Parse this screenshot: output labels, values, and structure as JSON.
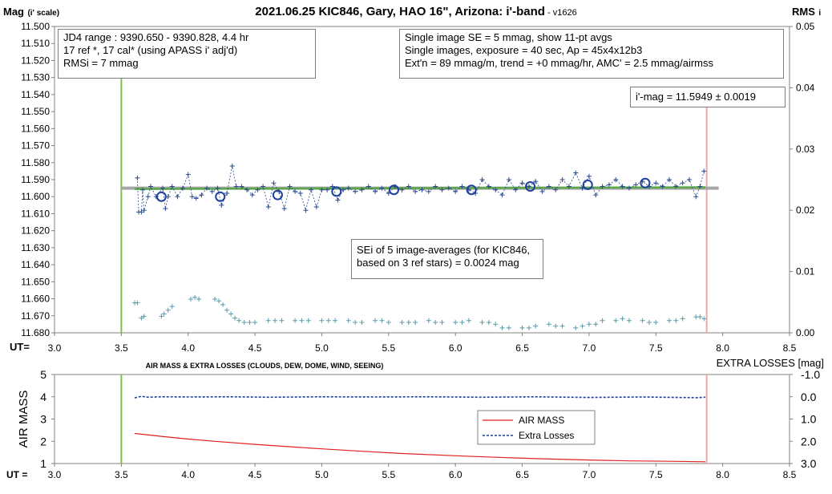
{
  "header": {
    "title": "2021.06.25 KIC846, Gary, HAO 16\", Arizona: i'-band",
    "version": " - v1626",
    "left_axis_label": "Mag",
    "left_axis_sub": "(i' scale)",
    "right_axis_label": "RMS",
    "right_axis_sub": "i"
  },
  "colors": {
    "data": "#2b4a8c",
    "avg_circle": "#1f3f9e",
    "fit_line": "#5aa84a",
    "mean_line": "#a6a6a6",
    "rms": "#5b9aa8",
    "start_line": "#7cc24a",
    "end_line": "#f2a6a6",
    "airmass": "#e02020",
    "extra_losses": "#1f3f9e"
  },
  "info_boxes": {
    "left": [
      "JD4 range : 9390.650 - 9390.828, 4.4  hr",
      "17 ref *, 17 cal* (using APASS i' adj'd)",
      "RMSi = 7 mmag"
    ],
    "right": [
      "Single image SE = 5 mmag, show 11-pt avgs",
      "Single images, exposure = 40 sec, Ap = 45x4x12b3",
      "Ext'n = 89 mmag/m, trend = +0 mmag/hr, AMC' = 2.5 mmag/airmss"
    ],
    "imag": "i'-mag = 11.5949 ± 0.0019",
    "sei": [
      "SEi of 5 image-averages (for KIC846,",
      "based on 3 ref stars) = 0.0024 mag"
    ]
  },
  "chart_data": [
    {
      "type": "scatter",
      "title": "2021.06.25 KIC846, Gary, HAO 16\", Arizona: i'-band",
      "xlabel": "UT=",
      "ylabel": "Mag (i' scale)",
      "y2label": "RMS i",
      "xlim": [
        3.0,
        8.5
      ],
      "ylim": [
        11.68,
        11.5
      ],
      "y2lim": [
        0.0,
        0.05
      ],
      "grid": false,
      "x_ticks": [
        "3.0",
        "3.5",
        "4.0",
        "4.5",
        "5.0",
        "5.5",
        "6.0",
        "6.5",
        "7.0",
        "7.5",
        "8.0",
        "8.5"
      ],
      "y_ticks": [
        "11.500",
        "11.510",
        "11.520",
        "11.530",
        "11.540",
        "11.550",
        "11.560",
        "11.570",
        "11.580",
        "11.590",
        "11.600",
        "11.610",
        "11.620",
        "11.630",
        "11.640",
        "11.650",
        "11.660",
        "11.670",
        "11.680"
      ],
      "y2_ticks": [
        "0.05",
        "0.04",
        "0.03",
        "0.02",
        "0.01",
        "0.00"
      ],
      "vlines": {
        "start": 3.5,
        "end": 7.88
      },
      "mean_mag": 11.595,
      "fit_line": {
        "x": [
          3.6,
          7.87
        ],
        "y": [
          11.5955,
          11.5945
        ]
      },
      "averages": {
        "x": [
          3.8,
          4.24,
          4.67,
          5.11,
          5.54,
          6.12,
          6.56,
          6.99,
          7.42
        ],
        "y": [
          11.6,
          11.6,
          11.599,
          11.597,
          11.596,
          11.596,
          11.594,
          11.593,
          11.592
        ]
      },
      "singles": {
        "x": [
          3.62,
          3.63,
          3.65,
          3.66,
          3.67,
          3.7,
          3.72,
          3.76,
          3.81,
          3.83,
          3.85,
          3.88,
          3.92,
          3.96,
          4.0,
          4.03,
          4.06,
          4.1,
          4.14,
          4.18,
          4.22,
          4.25,
          4.29,
          4.33,
          4.36,
          4.4,
          4.44,
          4.48,
          4.52,
          4.56,
          4.6,
          4.64,
          4.68,
          4.72,
          4.76,
          4.8,
          4.84,
          4.88,
          4.92,
          4.96,
          5.0,
          5.04,
          5.08,
          5.12,
          5.16,
          5.2,
          5.25,
          5.3,
          5.35,
          5.4,
          5.45,
          5.5,
          5.55,
          5.6,
          5.65,
          5.7,
          5.75,
          5.8,
          5.85,
          5.9,
          5.95,
          6.0,
          6.05,
          6.1,
          6.15,
          6.2,
          6.25,
          6.3,
          6.35,
          6.4,
          6.45,
          6.5,
          6.55,
          6.6,
          6.65,
          6.7,
          6.75,
          6.8,
          6.85,
          6.9,
          6.95,
          7.0,
          7.05,
          7.1,
          7.15,
          7.2,
          7.25,
          7.3,
          7.35,
          7.4,
          7.45,
          7.5,
          7.55,
          7.6,
          7.65,
          7.7,
          7.75,
          7.8,
          7.83,
          7.86
        ],
        "y": [
          11.589,
          11.609,
          11.609,
          11.596,
          11.608,
          11.6,
          11.594,
          11.6,
          11.595,
          11.607,
          11.6,
          11.594,
          11.6,
          11.595,
          11.587,
          11.6,
          11.601,
          11.599,
          11.595,
          11.597,
          11.595,
          11.605,
          11.598,
          11.582,
          11.594,
          11.594,
          11.596,
          11.599,
          11.596,
          11.594,
          11.606,
          11.592,
          11.597,
          11.607,
          11.594,
          11.597,
          11.598,
          11.608,
          11.596,
          11.606,
          11.596,
          11.596,
          11.594,
          11.602,
          11.596,
          11.595,
          11.597,
          11.596,
          11.594,
          11.597,
          11.595,
          11.598,
          11.594,
          11.596,
          11.594,
          11.597,
          11.596,
          11.597,
          11.594,
          11.596,
          11.595,
          11.597,
          11.594,
          11.596,
          11.598,
          11.59,
          11.594,
          11.596,
          11.599,
          11.59,
          11.596,
          11.592,
          11.594,
          11.591,
          11.597,
          11.594,
          11.596,
          11.59,
          11.594,
          11.586,
          11.595,
          11.588,
          11.599,
          11.594,
          11.593,
          11.59,
          11.594,
          11.595,
          11.593,
          11.591,
          11.594,
          11.592,
          11.594,
          11.59,
          11.594,
          11.592,
          11.59,
          11.6,
          11.594,
          11.585
        ]
      },
      "rms": {
        "x": [
          3.6,
          3.62,
          3.65,
          3.67,
          3.8,
          3.82,
          3.85,
          3.88,
          4.02,
          4.05,
          4.08,
          4.2,
          4.23,
          4.26,
          4.29,
          4.32,
          4.35,
          4.38,
          4.42,
          4.46,
          4.5,
          4.6,
          4.65,
          4.7,
          4.8,
          4.85,
          4.9,
          5.0,
          5.05,
          5.1,
          5.2,
          5.25,
          5.3,
          5.4,
          5.45,
          5.5,
          5.6,
          5.65,
          5.7,
          5.8,
          5.85,
          5.9,
          6.0,
          6.05,
          6.1,
          6.2,
          6.25,
          6.3,
          6.35,
          6.4,
          6.5,
          6.55,
          6.6,
          6.7,
          6.75,
          6.8,
          6.9,
          6.95,
          7.0,
          7.05,
          7.1,
          7.2,
          7.25,
          7.3,
          7.4,
          7.45,
          7.5,
          7.6,
          7.65,
          7.7,
          7.8,
          7.83,
          7.86
        ],
        "y": [
          0.0049,
          0.0049,
          0.0024,
          0.0027,
          0.0027,
          0.0031,
          0.0037,
          0.0043,
          0.0055,
          0.0058,
          0.0055,
          0.0055,
          0.0052,
          0.0046,
          0.0037,
          0.0031,
          0.0024,
          0.002,
          0.0017,
          0.0017,
          0.0017,
          0.002,
          0.002,
          0.002,
          0.002,
          0.002,
          0.002,
          0.002,
          0.002,
          0.002,
          0.002,
          0.0017,
          0.0017,
          0.002,
          0.002,
          0.0017,
          0.0017,
          0.0017,
          0.0017,
          0.002,
          0.0017,
          0.0017,
          0.0017,
          0.0017,
          0.002,
          0.0017,
          0.0017,
          0.0014,
          0.0008,
          0.0008,
          0.0008,
          0.0008,
          0.0011,
          0.0014,
          0.0011,
          0.0011,
          0.0008,
          0.0011,
          0.0014,
          0.0014,
          0.002,
          0.002,
          0.0023,
          0.002,
          0.002,
          0.0017,
          0.0017,
          0.002,
          0.002,
          0.0023,
          0.0026,
          0.0026,
          0.0023
        ]
      }
    },
    {
      "type": "line",
      "title": "AIR MASS & EXTRA LOSSES (CLOUDS, DEW, DOME, WIND, SEEING)",
      "xlabel": "UT =",
      "ylabel": "AIR MASS",
      "y2label": "EXTRA LOSSES [mag]",
      "xlim": [
        3.0,
        8.5
      ],
      "ylim": [
        1,
        5
      ],
      "y2lim": [
        3.0,
        -1.0
      ],
      "grid": false,
      "legend_position": "center-right",
      "x_ticks": [
        "3.0",
        "3.5",
        "4.0",
        "4.5",
        "5.0",
        "5.5",
        "6.0",
        "6.5",
        "7.0",
        "7.5",
        "8.0",
        "8.5"
      ],
      "y_ticks": [
        "1",
        "2",
        "3",
        "4",
        "5"
      ],
      "y2_ticks": [
        "-1.0",
        "0.0",
        "1.0",
        "2.0",
        "3.0"
      ],
      "series": [
        {
          "name": "AIR MASS",
          "x": [
            3.6,
            3.8,
            4.0,
            4.2,
            4.5,
            4.8,
            5.0,
            5.3,
            5.6,
            6.0,
            6.3,
            6.6,
            7.0,
            7.3,
            7.6,
            7.87
          ],
          "y": [
            2.35,
            2.22,
            2.1,
            2.0,
            1.86,
            1.74,
            1.66,
            1.55,
            1.45,
            1.35,
            1.28,
            1.22,
            1.16,
            1.12,
            1.1,
            1.08
          ]
        },
        {
          "name": "Extra Losses",
          "x": [
            3.6,
            3.65,
            3.7,
            3.8,
            4.0,
            4.3,
            4.6,
            5.0,
            5.4,
            5.8,
            6.2,
            6.6,
            7.0,
            7.4,
            7.8,
            7.87
          ],
          "y": [
            0.05,
            -0.02,
            0.02,
            0.0,
            0.01,
            0.0,
            0.02,
            0.0,
            0.01,
            0.0,
            0.02,
            0.0,
            0.03,
            0.01,
            0.04,
            0.02
          ]
        }
      ]
    }
  ]
}
